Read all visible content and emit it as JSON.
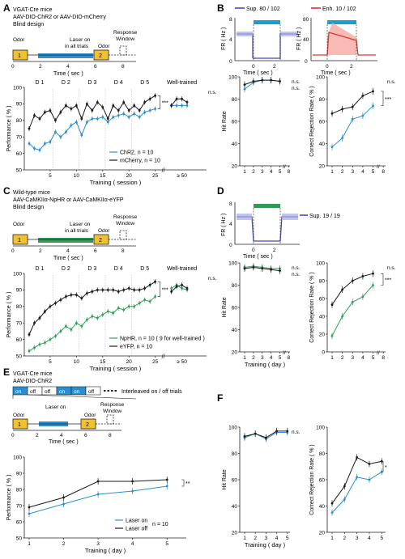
{
  "panels": {
    "A": {
      "label": "A",
      "desc": [
        "VGAT-Cre mice",
        "AAV-DIO-ChR2  or  AAV-DIO-mCherry",
        "Blind design"
      ],
      "timeline": {
        "odor1": "Odor",
        "odor2": "Odor",
        "laser": "Laser on",
        "laser2": "in all trials",
        "resp1": "Response",
        "resp2": "Window",
        "n1": "1",
        "n2": "2",
        "ticks": [
          "0",
          "2",
          "4",
          "6",
          "8"
        ],
        "xlabel": "Time  ( sec )"
      }
    },
    "B": {
      "label": "B",
      "fr1_title": "Sup. 80 / 102",
      "fr2_title": "Enh. 10 / 102",
      "fr_ylabel": "FR ( Hz )",
      "fr_xlabel": "Time  ( sec )",
      "fr1_yticks": [
        "0",
        "4",
        "8"
      ],
      "fr2_yticks": [
        "0",
        "40",
        "80"
      ],
      "fr_xticks": [
        "0",
        "2"
      ]
    },
    "C": {
      "label": "C",
      "desc": [
        "Wild-type mice",
        "AAV-CaMKIIα-NpHR  or  AAV-CaMKIIα-eYFP",
        "Blind design"
      ],
      "timeline": {
        "odor1": "Odor",
        "odor2": "Odor",
        "laser": "Laser on",
        "laser2": "in all trials",
        "resp1": "Response",
        "resp2": "Window",
        "n1": "1",
        "n2": "2",
        "ticks": [
          "0",
          "2",
          "4",
          "6",
          "8"
        ],
        "xlabel": "Time  ( sec )"
      }
    },
    "D": {
      "label": "D",
      "fr1_title": "Sup. 19 / 19",
      "fr_ylabel": "FR ( Hz )",
      "fr_xlabel": "Time  ( sec )",
      "fr1_yticks": [
        "0",
        "4",
        "8"
      ],
      "fr_xticks": [
        "0",
        "2"
      ]
    },
    "E": {
      "label": "E",
      "desc": [
        "VGAT-Cre mice",
        "AAV-DIO-ChR2"
      ],
      "blocks": [
        "on",
        "off",
        "off",
        "on",
        "on",
        "off"
      ],
      "interleave": "Interleaved on / off trials",
      "timeline": {
        "odor1": "Odor",
        "odor2": "Odor",
        "laser": "Laser on",
        "resp1": "Response",
        "resp2": "Window",
        "n1": "1",
        "n2": "2",
        "ticks": [
          "0",
          "2",
          "4",
          "6",
          "8"
        ],
        "xlabel": "Time  ( sec )"
      }
    },
    "F": {
      "label": "F"
    }
  },
  "chart_data": [
    {
      "id": "A-main",
      "type": "line",
      "ylabel": "Performance  ( % )",
      "xlabel": "Training  ( session )",
      "ylim": [
        50,
        100
      ],
      "yticks": [
        50,
        60,
        70,
        80,
        90,
        100
      ],
      "xticks": [
        "5",
        "10",
        "15",
        "20",
        "25"
      ],
      "extra_xtick": "≥ 50",
      "break_mark": "//",
      "day_labels": [
        "D 1",
        "D 2",
        "D 3",
        "D 4",
        "D 5"
      ],
      "well_trained": "Well-trained",
      "sig": "***",
      "ns": "n.s.",
      "series": [
        {
          "name": "ChR2, n = 10",
          "color": "#2b8fd1",
          "values": [
            66,
            63,
            62,
            66,
            67,
            73,
            70,
            73,
            77,
            79,
            71,
            79,
            81,
            81,
            82,
            79,
            82,
            83,
            84,
            82,
            84,
            82,
            85,
            86,
            87,
            89,
            89,
            89,
            89
          ]
        },
        {
          "name": "mCherry, n = 10",
          "color": "#1a1a1a",
          "values": [
            75,
            83,
            81,
            85,
            86,
            80,
            85,
            89,
            87,
            89,
            81,
            90,
            86,
            91,
            88,
            81,
            89,
            86,
            91,
            86,
            89,
            86,
            91,
            93,
            95,
            89,
            93,
            93,
            91
          ]
        }
      ]
    },
    {
      "id": "B-hit",
      "type": "line",
      "ylabel": "Hit Rate",
      "xlabel": "",
      "ylim": [
        20,
        100
      ],
      "yticks": [
        20,
        40,
        60,
        80,
        100
      ],
      "xticks": [
        "1",
        "2",
        "3",
        "4",
        "5",
        "8"
      ],
      "ns": [
        "n.s.",
        "n.s."
      ],
      "series": [
        {
          "name": "",
          "color": "#2b8fd1",
          "values": [
            89,
            95,
            97,
            97,
            96
          ]
        },
        {
          "name": "",
          "color": "#1a1a1a",
          "values": [
            93,
            96,
            97,
            97,
            96
          ]
        }
      ]
    },
    {
      "id": "B-crr",
      "type": "line",
      "ylabel": "Correct Rejection Rate  ( % )",
      "xlabel": "",
      "ylim": [
        20,
        100
      ],
      "yticks": [
        20,
        40,
        60,
        80,
        100
      ],
      "xticks": [
        "1",
        "2",
        "3",
        "4",
        "5",
        "8"
      ],
      "sig": "***",
      "ns": "n.s.",
      "series": [
        {
          "name": "",
          "color": "#2b8fd1",
          "values": [
            37,
            45,
            62,
            65,
            74
          ]
        },
        {
          "name": "",
          "color": "#1a1a1a",
          "values": [
            67,
            71,
            73,
            83,
            87
          ]
        }
      ]
    },
    {
      "id": "C-main",
      "type": "line",
      "ylabel": "Performance  ( % )",
      "xlabel": "Training  ( session )",
      "ylim": [
        50,
        100
      ],
      "yticks": [
        50,
        60,
        70,
        80,
        90,
        100
      ],
      "xticks": [
        "5",
        "10",
        "15",
        "20",
        "25"
      ],
      "extra_xtick": "≥ 50",
      "break_mark": "//",
      "day_labels": [
        "D 1",
        "D 2",
        "D 3",
        "D 4",
        "D 5"
      ],
      "well_trained": "Well-trained",
      "sig": "***",
      "ns": "n.s.",
      "series": [
        {
          "name": "NpHR, n = 10  ( 9 for well-trained )",
          "color": "#2fa05a",
          "values": [
            53,
            55,
            57,
            58,
            60,
            62,
            65,
            68,
            66,
            70,
            68,
            72,
            74,
            73,
            75,
            77,
            76,
            79,
            78,
            80,
            80,
            82,
            84,
            83,
            86,
            91,
            93,
            91,
            90
          ]
        },
        {
          "name": "eYFP, n = 10",
          "color": "#1a1a1a",
          "values": [
            63,
            70,
            73,
            77,
            80,
            82,
            84,
            86,
            87,
            87,
            85,
            88,
            89,
            90,
            90,
            90,
            90,
            89,
            90,
            91,
            90,
            90,
            91,
            93,
            95,
            89,
            92,
            93,
            91
          ]
        }
      ]
    },
    {
      "id": "D-hit",
      "type": "line",
      "ylabel": "Hit Rate",
      "xlabel": "Training  ( day )",
      "ylim": [
        20,
        100
      ],
      "yticks": [
        20,
        40,
        60,
        80,
        100
      ],
      "xticks": [
        "1",
        "2",
        "3",
        "4",
        "5",
        "8"
      ],
      "ns": [
        "n.s.",
        "n.s."
      ],
      "series": [
        {
          "name": "",
          "color": "#2fa05a",
          "values": [
            96,
            97,
            96,
            95,
            95
          ]
        },
        {
          "name": "",
          "color": "#1a1a1a",
          "values": [
            95,
            96,
            95,
            94,
            93
          ]
        }
      ]
    },
    {
      "id": "D-crr",
      "type": "line",
      "ylabel": "Correct Rejection Rate  ( % )",
      "xlabel": "",
      "ylim": [
        0,
        100
      ],
      "yticks": [
        0,
        20,
        40,
        60,
        80,
        100
      ],
      "xticks": [
        "1",
        "2",
        "3",
        "4",
        "5",
        "8"
      ],
      "sig": "***",
      "ns": "n.s.",
      "series": [
        {
          "name": "",
          "color": "#2fa05a",
          "values": [
            18,
            40,
            56,
            62,
            75
          ]
        },
        {
          "name": "",
          "color": "#1a1a1a",
          "values": [
            53,
            70,
            80,
            85,
            88
          ]
        }
      ]
    },
    {
      "id": "E-main",
      "type": "line",
      "ylabel": "Performance  ( % )",
      "xlabel": "Training  ( day )",
      "ylim": [
        50,
        100
      ],
      "yticks": [
        50,
        60,
        70,
        80,
        90,
        100
      ],
      "xticks": [
        "1",
        "2",
        "3",
        "4",
        "5"
      ],
      "sig": "**",
      "legend_note": "n = 10",
      "series": [
        {
          "name": "Laser on",
          "color": "#2b8fd1",
          "values": [
            65,
            71,
            77,
            79,
            82
          ]
        },
        {
          "name": "Laser off",
          "color": "#1a1a1a",
          "values": [
            69,
            75,
            85,
            85,
            86
          ]
        }
      ]
    },
    {
      "id": "F-hit",
      "type": "line",
      "ylabel": "Hit Rate",
      "xlabel": "Training  ( day )",
      "ylim": [
        20,
        100
      ],
      "yticks": [
        20,
        40,
        60,
        80,
        100
      ],
      "xticks": [
        "1",
        "2",
        "3",
        "4",
        "5"
      ],
      "ns": [
        "n.s."
      ],
      "series": [
        {
          "name": "",
          "color": "#2b8fd1",
          "values": [
            92,
            95,
            91,
            96,
            96
          ]
        },
        {
          "name": "",
          "color": "#1a1a1a",
          "values": [
            93,
            95,
            92,
            97,
            97
          ]
        }
      ]
    },
    {
      "id": "F-crr",
      "type": "line",
      "ylabel": "Correct Rejection Rate  ( % )",
      "xlabel": "",
      "ylim": [
        20,
        100
      ],
      "yticks": [
        20,
        40,
        60,
        80,
        100
      ],
      "xticks": [
        "1",
        "2",
        "3",
        "4",
        "5"
      ],
      "sig": "*",
      "series": [
        {
          "name": "",
          "color": "#2b8fd1",
          "values": [
            35,
            45,
            62,
            60,
            66
          ]
        },
        {
          "name": "",
          "color": "#1a1a1a",
          "values": [
            42,
            55,
            77,
            72,
            74
          ]
        }
      ]
    }
  ]
}
